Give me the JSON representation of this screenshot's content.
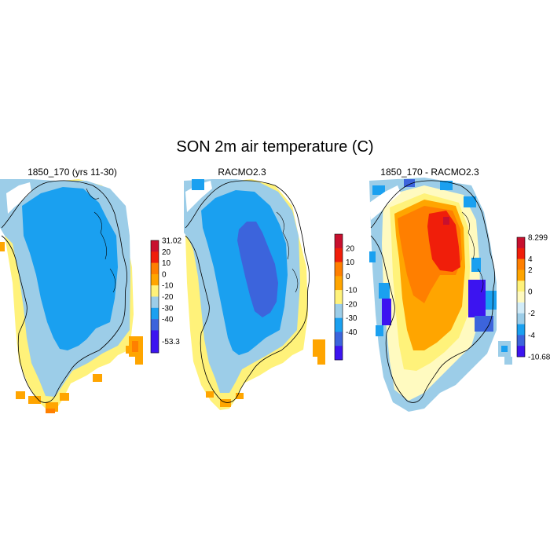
{
  "title": "SON 2m air temperature (C)",
  "palette": {
    "dark_red": "#c8102e",
    "red": "#f01e0a",
    "orange_dark": "#ff7f00",
    "orange": "#ffa500",
    "yellow": "#fff27a",
    "pale_yellow": "#fffac0",
    "pale_blue": "#d2ecf8",
    "light_blue": "#9ccde8",
    "mid_blue": "#1aa0f0",
    "royal_blue": "#3c64dc",
    "violet": "#3c14f0"
  },
  "panels": [
    {
      "title": "1850_170 (yrs 11-30)",
      "colorbar_labels": [
        "31.02",
        "20",
        "10",
        "0",
        "-10",
        "-20",
        "-30",
        "-40",
        "-53.3"
      ]
    },
    {
      "title": "RACMO2.3",
      "colorbar_labels": [
        "20",
        "10",
        "0",
        "-10",
        "-20",
        "-30",
        "-40"
      ]
    },
    {
      "title": "1850_170 - RACMO2.3",
      "colorbar_labels": [
        "8.299",
        "4",
        "2",
        "0",
        "-2",
        "-4",
        "-10.68"
      ]
    }
  ]
}
